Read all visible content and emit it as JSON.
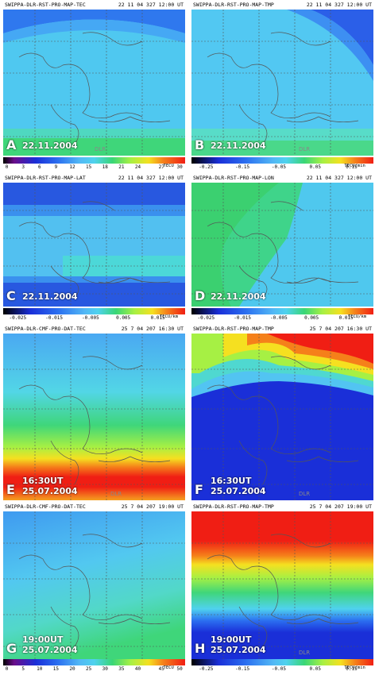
{
  "panels": [
    {
      "letter": "A",
      "title": "SWIPPA-DLR-RST-PRO-MAP-TEC",
      "stamp": "22 11 04 327 12:00 UT",
      "date": "22.11.2004",
      "time": ""
    },
    {
      "letter": "B",
      "title": "SWIPPA-DLR-RST-PRO-MAP-TMP",
      "stamp": "22 11 04 327 12:00 UT",
      "date": "22.11.2004",
      "time": ""
    },
    {
      "letter": "C",
      "title": "SWIPPA-DLR-RST-PRO-MAP-LAT",
      "stamp": "22 11 04 327 12:00 UT",
      "date": "22.11.2004",
      "time": ""
    },
    {
      "letter": "D",
      "title": "SWIPPA-DLR-RST-PRO-MAP-LON",
      "stamp": "22 11 04 327 12:00 UT",
      "date": "22.11.2004",
      "time": ""
    },
    {
      "letter": "E",
      "title": "SWIPPA-DLR-CMF-PRO-DAT-TEC",
      "stamp": "25 7 04 207 16:30 UT",
      "date": "25.07.2004",
      "time": "16:30UT"
    },
    {
      "letter": "F",
      "title": "SWIPPA-DLR-RST-PRO-MAP-TMP",
      "stamp": "25 7 04 207 16:30 UT",
      "date": "25.07.2004",
      "time": "16:30UT"
    },
    {
      "letter": "G",
      "title": "SWIPPA-DLR-CMF-PRO-DAT-TEC",
      "stamp": "25 7 04 207 19:00 UT",
      "date": "25.07.2004",
      "time": "19:00UT"
    },
    {
      "letter": "H",
      "title": "SWIPPA-DLR-RST-PRO-MAP-TMP",
      "stamp": "25 7 04 207 19:00 UT",
      "date": "25.07.2004",
      "time": "19:00UT"
    }
  ],
  "colorbars": [
    {
      "unit": "TECU",
      "ticks": [
        "0",
        "3",
        "6",
        "9",
        "12",
        "15",
        "18",
        "21",
        "24",
        "27",
        "30"
      ]
    },
    {
      "unit": "TECU/min",
      "ticks": [
        "-0.25",
        "-0.15",
        "-0.05",
        "0.05",
        "0.15"
      ]
    },
    {
      "unit": "TECU/km",
      "ticks": [
        "-0.025",
        "-0.015",
        "-0.005",
        "0.005",
        "0.015"
      ]
    },
    {
      "unit": "TECU/km",
      "ticks": [
        "-0.025",
        "-0.015",
        "-0.005",
        "0.005",
        "0.015"
      ]
    },
    {
      "unit": "TECU",
      "ticks": [
        "0",
        "5",
        "10",
        "15",
        "20",
        "25",
        "30",
        "35",
        "40",
        "45",
        "50"
      ]
    },
    {
      "unit": "TECU/min",
      "ticks": [
        "-0.25",
        "-0.15",
        "-0.05",
        "0.05",
        "0.15"
      ]
    }
  ],
  "watermark": "DLR",
  "colors": {
    "deepblue": "#1a2fd8",
    "blue": "#2b6ff0",
    "lightblue": "#52b8f5",
    "cyan": "#4fd2ee",
    "green": "#39d676",
    "lime": "#a6f044",
    "red": "#f01e14",
    "orange": "#f5801a"
  }
}
